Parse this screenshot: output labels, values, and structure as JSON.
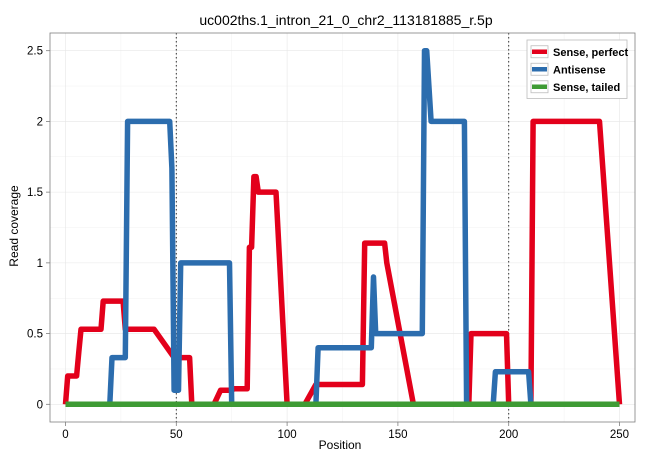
{
  "chart_data": {
    "type": "line",
    "title": "uc002ths.1_intron_21_0_chr2_113181885_r.5p",
    "xlabel": "Position",
    "ylabel": "Read coverage",
    "xlim": [
      -7,
      257
    ],
    "ylim": [
      -0.125,
      2.625
    ],
    "x_ticks": [
      0,
      50,
      100,
      150,
      200,
      250
    ],
    "y_ticks": [
      0,
      0.5,
      1,
      1.5,
      2,
      2.5
    ],
    "y_tick_labels": [
      "0",
      "0.5",
      "1",
      "1.5",
      "2",
      "2.5"
    ],
    "vlines": [
      50,
      200
    ],
    "grid": true,
    "legend_position": "top-right",
    "series": [
      {
        "name": "Sense, perfect",
        "color": "#E3001B",
        "x": [
          0,
          1,
          2,
          5,
          6,
          7,
          10,
          11,
          12,
          16,
          17,
          20,
          21,
          25,
          26,
          27,
          36,
          37,
          39,
          40,
          49,
          50,
          51,
          56,
          57,
          59,
          60,
          61,
          62,
          63,
          64,
          65,
          66,
          67,
          70,
          71,
          75,
          76,
          77,
          78,
          79,
          82,
          83,
          84,
          85,
          86,
          87,
          89,
          90,
          92,
          93,
          94,
          95,
          100,
          101,
          102,
          106,
          107,
          108,
          113,
          114,
          134,
          135,
          136,
          139,
          140,
          141,
          142,
          143,
          144,
          145,
          157,
          158,
          159,
          160,
          161,
          178,
          179,
          180,
          181,
          182,
          183,
          189,
          190,
          191,
          192,
          193,
          194,
          195,
          198,
          199,
          200,
          201,
          210,
          211,
          212,
          213,
          220,
          221,
          230,
          231,
          240,
          241,
          250
        ],
        "y": [
          0,
          0.2,
          0.2,
          0.2,
          0.37,
          0.53,
          0.53,
          0.53,
          0.53,
          0.53,
          0.73,
          0.73,
          0.73,
          0.73,
          0.73,
          0.53,
          0.53,
          0.53,
          0.53,
          0.53,
          0.33,
          0.33,
          0.33,
          0.33,
          0,
          0,
          0,
          0,
          0,
          0,
          0,
          0,
          0,
          0,
          0.1,
          0.1,
          0.1,
          0.11,
          0.11,
          0.11,
          0.11,
          0.11,
          1.11,
          1.11,
          1.61,
          1.61,
          1.5,
          1.5,
          1.5,
          1.5,
          1.5,
          1.5,
          1.5,
          0,
          0,
          0,
          0,
          0,
          0,
          0.14,
          0.14,
          0.14,
          1.14,
          1.14,
          1.14,
          1.14,
          1.14,
          1.14,
          1.14,
          1.14,
          1.0,
          0,
          0,
          0,
          0,
          0,
          0,
          0,
          0,
          0,
          0,
          0.5,
          0.5,
          0.5,
          0.5,
          0.5,
          0.5,
          0.5,
          0.5,
          0.5,
          0.5,
          0,
          0,
          0,
          2.0,
          2.0,
          2.0,
          2.0,
          2.0,
          2.0,
          2.0,
          2.0,
          2.0,
          0
        ]
      },
      {
        "name": "Antisense",
        "color": "#2C6DAE",
        "x": [
          0,
          20,
          21,
          27,
          28,
          47,
          48,
          49,
          50,
          51,
          52,
          74,
          75,
          112,
          113,
          114,
          124,
          125,
          138,
          139,
          140,
          142,
          143,
          157,
          158,
          159,
          160,
          161,
          162,
          163,
          164,
          165,
          166,
          180,
          181,
          182,
          183,
          184,
          193,
          194,
          195,
          196,
          209,
          210,
          250
        ],
        "y": [
          0,
          0,
          0.33,
          0.33,
          2.0,
          2.0,
          1.67,
          0.1,
          0.1,
          0.1,
          1.0,
          1.0,
          0,
          0,
          0,
          0.4,
          0.4,
          0.4,
          0.4,
          0.9,
          0.5,
          0.5,
          0.5,
          0.5,
          0.5,
          0.5,
          0.5,
          0.5,
          2.5,
          2.5,
          2.25,
          2.0,
          2.0,
          2.0,
          0,
          0,
          0,
          0,
          0,
          0.23,
          0.23,
          0.23,
          0.23,
          0,
          0
        ]
      },
      {
        "name": "Sense, tailed",
        "color": "#3E9B34",
        "x": [
          0,
          250
        ],
        "y": [
          0,
          0
        ]
      }
    ]
  }
}
